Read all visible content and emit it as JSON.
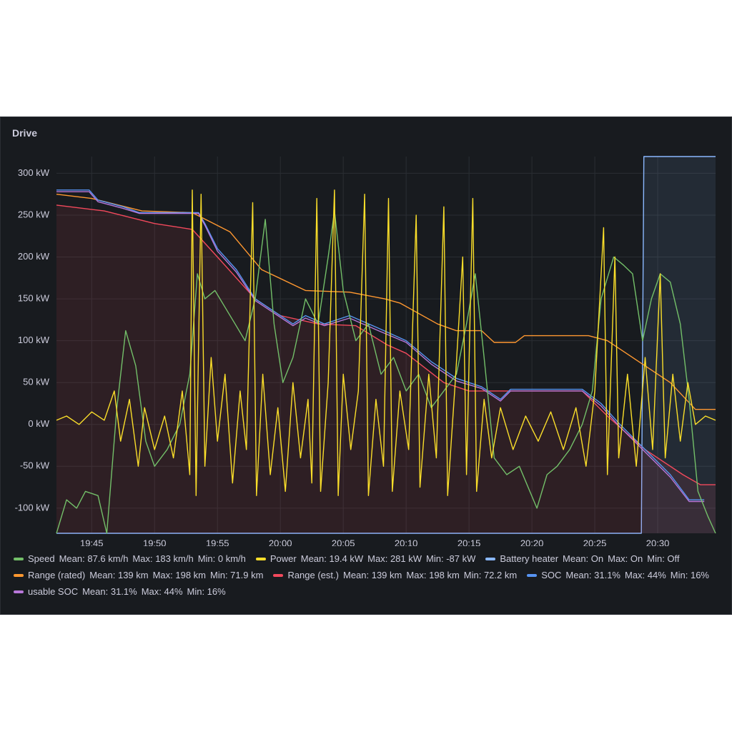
{
  "chart_data": {
    "type": "line",
    "title": "Drive",
    "xlim": [
      1182.2,
      1234.6
    ],
    "ylim": [
      -130,
      320
    ],
    "xticks": [
      {
        "value": 1185,
        "label": "19:45"
      },
      {
        "value": 1190,
        "label": "19:50"
      },
      {
        "value": 1195,
        "label": "19:55"
      },
      {
        "value": 1200,
        "label": "20:00"
      },
      {
        "value": 1205,
        "label": "20:05"
      },
      {
        "value": 1210,
        "label": "20:10"
      },
      {
        "value": 1215,
        "label": "20:15"
      },
      {
        "value": 1220,
        "label": "20:20"
      },
      {
        "value": 1225,
        "label": "20:25"
      },
      {
        "value": 1230,
        "label": "20:30"
      }
    ],
    "yticks": [
      {
        "value": -100,
        "label": "-100 kW"
      },
      {
        "value": -50,
        "label": "-50 kW"
      },
      {
        "value": 0,
        "label": "0 kW"
      },
      {
        "value": 50,
        "label": "50 kW"
      },
      {
        "value": 100,
        "label": "100 kW"
      },
      {
        "value": 150,
        "label": "150 kW"
      },
      {
        "value": 200,
        "label": "200 kW"
      },
      {
        "value": 250,
        "label": "250 kW"
      },
      {
        "value": 300,
        "label": "300 kW"
      }
    ],
    "grid": true,
    "series": [
      {
        "name": "Speed",
        "color": "#73bf69",
        "stats": [
          "Mean: 87.6 km/h",
          "Max: 183 km/h",
          "Min: 0 km/h"
        ],
        "x": [
          1182.2,
          1183,
          1183.8,
          1184.5,
          1185.5,
          1186.2,
          1187,
          1187.7,
          1188.5,
          1189.3,
          1190,
          1191,
          1192,
          1192.8,
          1193.4,
          1194,
          1194.8,
          1195.6,
          1196.4,
          1197.2,
          1198,
          1198.8,
          1199.5,
          1200.2,
          1201,
          1202,
          1203,
          1203.8,
          1204.3,
          1205,
          1206,
          1207,
          1208,
          1209,
          1210,
          1211,
          1212,
          1213,
          1214,
          1214.8,
          1215.5,
          1216.2,
          1217,
          1218,
          1219,
          1220.4,
          1221.2,
          1222,
          1223,
          1224,
          1224.8,
          1225.5,
          1226.5,
          1227.3,
          1228,
          1228.8,
          1229.5,
          1230.2,
          1231,
          1231.8,
          1232.5,
          1233.2,
          1234,
          1234.6
        ],
        "values": [
          -130,
          -90,
          -100,
          -80,
          -85,
          -130,
          20,
          112,
          70,
          -20,
          -50,
          -30,
          0,
          60,
          180,
          150,
          160,
          140,
          120,
          100,
          150,
          245,
          120,
          50,
          80,
          150,
          120,
          200,
          255,
          160,
          100,
          120,
          60,
          80,
          40,
          60,
          20,
          40,
          60,
          120,
          180,
          80,
          -40,
          -60,
          -50,
          -100,
          -60,
          -50,
          -30,
          0,
          40,
          150,
          200,
          190,
          180,
          100,
          150,
          180,
          170,
          120,
          30,
          -80,
          -110,
          -130
        ]
      },
      {
        "name": "Power",
        "color": "#fade2a",
        "stats": [
          "Mean: 19.4 kW",
          "Max: 281 kW",
          "Min: -87 kW"
        ],
        "x": [
          1182.2,
          1183,
          1184,
          1185,
          1186,
          1186.8,
          1187.3,
          1188,
          1188.7,
          1189.2,
          1190,
          1190.8,
          1191.5,
          1192.2,
          1192.8,
          1193,
          1193.3,
          1193.7,
          1194,
          1194.5,
          1195,
          1195.6,
          1196.2,
          1196.8,
          1197.3,
          1197.8,
          1198.1,
          1198.6,
          1199.2,
          1199.8,
          1200.4,
          1201,
          1201.6,
          1202.2,
          1202.5,
          1202.9,
          1203.2,
          1203.8,
          1204.3,
          1204.6,
          1205,
          1205.6,
          1206.2,
          1206.7,
          1207,
          1207.6,
          1208.2,
          1208.6,
          1208.9,
          1209.5,
          1210.2,
          1210.8,
          1211.1,
          1211.8,
          1212.4,
          1213,
          1213.3,
          1213.9,
          1214.5,
          1214.8,
          1215.3,
          1215.6,
          1216.2,
          1216.8,
          1217.5,
          1218.5,
          1219.5,
          1220.5,
          1221.5,
          1222.5,
          1223.5,
          1224.3,
          1225,
          1225.7,
          1226,
          1226.6,
          1226.9,
          1227.6,
          1228.3,
          1229,
          1229.6,
          1230.2,
          1230.6,
          1231.2,
          1231.8,
          1232.4,
          1233,
          1233.8,
          1234.6
        ],
        "values": [
          5,
          10,
          0,
          15,
          5,
          40,
          -20,
          30,
          -50,
          20,
          -30,
          10,
          -40,
          40,
          -60,
          280,
          -85,
          275,
          -50,
          80,
          -20,
          60,
          -70,
          40,
          -30,
          265,
          -85,
          60,
          -60,
          20,
          -80,
          50,
          -40,
          30,
          -70,
          270,
          -80,
          50,
          280,
          -85,
          60,
          -30,
          40,
          275,
          -85,
          30,
          -50,
          270,
          -80,
          40,
          -30,
          250,
          -75,
          60,
          -40,
          260,
          -85,
          50,
          200,
          -60,
          270,
          -80,
          30,
          -40,
          20,
          -30,
          10,
          -20,
          15,
          -30,
          20,
          -50,
          40,
          235,
          -60,
          200,
          -40,
          60,
          -50,
          80,
          -30,
          180,
          -40,
          60,
          -20,
          50,
          0,
          10,
          5
        ]
      },
      {
        "name": "Battery heater",
        "color": "#8ab8ff",
        "stats": [
          "Mean: On",
          "Max: On",
          "Min: Off"
        ],
        "fill": true,
        "x": [
          1182.2,
          1228.7,
          1228.9,
          1234.6
        ],
        "values": [
          -130,
          -130,
          320,
          320
        ]
      },
      {
        "name": "Range (rated)",
        "color": "#ff9830",
        "stats": [
          "Mean: 139 km",
          "Max: 198 km",
          "Min: 71.9 km"
        ],
        "x": [
          1182.2,
          1185,
          1189,
          1193,
          1196,
          1198.5,
          1202,
          1205.5,
          1208.3,
          1209.5,
          1212.5,
          1214,
          1216,
          1217,
          1218.7,
          1219.4,
          1224.5,
          1226,
          1228,
          1231,
          1233,
          1234.6
        ],
        "values": [
          275,
          270,
          255,
          253,
          230,
          185,
          160,
          158,
          150,
          145,
          120,
          112,
          112,
          98,
          98,
          106,
          106,
          100,
          80,
          50,
          18,
          18
        ]
      },
      {
        "name": "Range (est.)",
        "color": "#f2495c",
        "stats": [
          "Mean: 139 km",
          "Max: 198 km",
          "Min: 72.2 km"
        ],
        "fill": true,
        "x": [
          1182.2,
          1186,
          1190,
          1193,
          1195,
          1198,
          1200,
          1203,
          1206,
          1208.5,
          1210,
          1213,
          1215,
          1224,
          1226,
          1229,
          1232,
          1233.4,
          1234.6
        ],
        "values": [
          262,
          255,
          240,
          233,
          200,
          150,
          130,
          120,
          118,
          95,
          85,
          50,
          40,
          40,
          10,
          -30,
          -60,
          -72,
          -72
        ]
      },
      {
        "name": "SOC",
        "color": "#5794f2",
        "stats": [
          "Mean: 31.1%",
          "Max: 44%",
          "Min: 16%"
        ],
        "x": [
          1182.2,
          1184.8,
          1185.5,
          1187.5,
          1188.8,
          1193.5,
          1194,
          1195,
          1196.5,
          1198,
          1199.5,
          1201,
          1202,
          1203.5,
          1205.5,
          1207.8,
          1210,
          1212,
          1214,
          1216,
          1217.5,
          1218.3,
          1224,
          1225.5,
          1227,
          1229,
          1231,
          1232.5,
          1233.7
        ],
        "values": [
          280,
          280,
          268,
          260,
          253,
          253,
          240,
          210,
          185,
          150,
          135,
          120,
          130,
          120,
          130,
          115,
          100,
          75,
          55,
          45,
          30,
          42,
          42,
          25,
          0,
          -30,
          -60,
          -90,
          -90
        ]
      },
      {
        "name": "usable SOC",
        "color": "#b877d9",
        "stats": [
          "Mean: 31.1%",
          "Max: 44%",
          "Min: 16%"
        ],
        "x": [
          1182.2,
          1184.8,
          1185.5,
          1187.5,
          1188.8,
          1193.5,
          1194,
          1195,
          1196.5,
          1198,
          1199.5,
          1201,
          1202,
          1203.5,
          1205.5,
          1207.8,
          1210,
          1212,
          1214,
          1216,
          1217.5,
          1218.3,
          1224,
          1225.5,
          1227,
          1229,
          1231,
          1232.5,
          1233.7
        ],
        "values": [
          278,
          278,
          266,
          258,
          252,
          252,
          238,
          207,
          182,
          148,
          133,
          118,
          127,
          118,
          127,
          112,
          98,
          72,
          52,
          43,
          28,
          40,
          40,
          22,
          -3,
          -33,
          -63,
          -92,
          -92
        ]
      }
    ]
  }
}
